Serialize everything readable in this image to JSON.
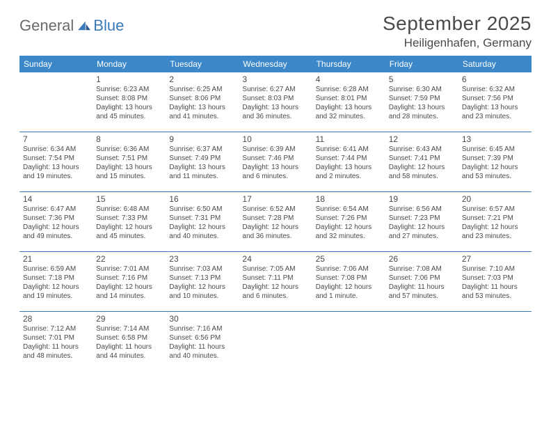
{
  "logo": {
    "word1": "General",
    "word2": "Blue"
  },
  "title": "September 2025",
  "location": "Heiligenhafen, Germany",
  "colors": {
    "header_bg": "#3b87c8",
    "header_text": "#ffffff",
    "rule": "#3b7ab8",
    "text": "#4a4a4a",
    "logo_gray": "#6a6a6a",
    "logo_blue": "#3b7ab8",
    "background": "#ffffff"
  },
  "typography": {
    "title_fontsize": 28,
    "location_fontsize": 17,
    "weekday_fontsize": 12,
    "daynum_fontsize": 12,
    "body_fontsize": 10
  },
  "layout": {
    "cols": 7,
    "start_col": 1
  },
  "weekdays": [
    "Sunday",
    "Monday",
    "Tuesday",
    "Wednesday",
    "Thursday",
    "Friday",
    "Saturday"
  ],
  "days": [
    {
      "n": "1",
      "sunrise": "6:23 AM",
      "sunset": "8:08 PM",
      "daylight": "13 hours and 45 minutes."
    },
    {
      "n": "2",
      "sunrise": "6:25 AM",
      "sunset": "8:06 PM",
      "daylight": "13 hours and 41 minutes."
    },
    {
      "n": "3",
      "sunrise": "6:27 AM",
      "sunset": "8:03 PM",
      "daylight": "13 hours and 36 minutes."
    },
    {
      "n": "4",
      "sunrise": "6:28 AM",
      "sunset": "8:01 PM",
      "daylight": "13 hours and 32 minutes."
    },
    {
      "n": "5",
      "sunrise": "6:30 AM",
      "sunset": "7:59 PM",
      "daylight": "13 hours and 28 minutes."
    },
    {
      "n": "6",
      "sunrise": "6:32 AM",
      "sunset": "7:56 PM",
      "daylight": "13 hours and 23 minutes."
    },
    {
      "n": "7",
      "sunrise": "6:34 AM",
      "sunset": "7:54 PM",
      "daylight": "13 hours and 19 minutes."
    },
    {
      "n": "8",
      "sunrise": "6:36 AM",
      "sunset": "7:51 PM",
      "daylight": "13 hours and 15 minutes."
    },
    {
      "n": "9",
      "sunrise": "6:37 AM",
      "sunset": "7:49 PM",
      "daylight": "13 hours and 11 minutes."
    },
    {
      "n": "10",
      "sunrise": "6:39 AM",
      "sunset": "7:46 PM",
      "daylight": "13 hours and 6 minutes."
    },
    {
      "n": "11",
      "sunrise": "6:41 AM",
      "sunset": "7:44 PM",
      "daylight": "13 hours and 2 minutes."
    },
    {
      "n": "12",
      "sunrise": "6:43 AM",
      "sunset": "7:41 PM",
      "daylight": "12 hours and 58 minutes."
    },
    {
      "n": "13",
      "sunrise": "6:45 AM",
      "sunset": "7:39 PM",
      "daylight": "12 hours and 53 minutes."
    },
    {
      "n": "14",
      "sunrise": "6:47 AM",
      "sunset": "7:36 PM",
      "daylight": "12 hours and 49 minutes."
    },
    {
      "n": "15",
      "sunrise": "6:48 AM",
      "sunset": "7:33 PM",
      "daylight": "12 hours and 45 minutes."
    },
    {
      "n": "16",
      "sunrise": "6:50 AM",
      "sunset": "7:31 PM",
      "daylight": "12 hours and 40 minutes."
    },
    {
      "n": "17",
      "sunrise": "6:52 AM",
      "sunset": "7:28 PM",
      "daylight": "12 hours and 36 minutes."
    },
    {
      "n": "18",
      "sunrise": "6:54 AM",
      "sunset": "7:26 PM",
      "daylight": "12 hours and 32 minutes."
    },
    {
      "n": "19",
      "sunrise": "6:56 AM",
      "sunset": "7:23 PM",
      "daylight": "12 hours and 27 minutes."
    },
    {
      "n": "20",
      "sunrise": "6:57 AM",
      "sunset": "7:21 PM",
      "daylight": "12 hours and 23 minutes."
    },
    {
      "n": "21",
      "sunrise": "6:59 AM",
      "sunset": "7:18 PM",
      "daylight": "12 hours and 19 minutes."
    },
    {
      "n": "22",
      "sunrise": "7:01 AM",
      "sunset": "7:16 PM",
      "daylight": "12 hours and 14 minutes."
    },
    {
      "n": "23",
      "sunrise": "7:03 AM",
      "sunset": "7:13 PM",
      "daylight": "12 hours and 10 minutes."
    },
    {
      "n": "24",
      "sunrise": "7:05 AM",
      "sunset": "7:11 PM",
      "daylight": "12 hours and 6 minutes."
    },
    {
      "n": "25",
      "sunrise": "7:06 AM",
      "sunset": "7:08 PM",
      "daylight": "12 hours and 1 minute."
    },
    {
      "n": "26",
      "sunrise": "7:08 AM",
      "sunset": "7:06 PM",
      "daylight": "11 hours and 57 minutes."
    },
    {
      "n": "27",
      "sunrise": "7:10 AM",
      "sunset": "7:03 PM",
      "daylight": "11 hours and 53 minutes."
    },
    {
      "n": "28",
      "sunrise": "7:12 AM",
      "sunset": "7:01 PM",
      "daylight": "11 hours and 48 minutes."
    },
    {
      "n": "29",
      "sunrise": "7:14 AM",
      "sunset": "6:58 PM",
      "daylight": "11 hours and 44 minutes."
    },
    {
      "n": "30",
      "sunrise": "7:16 AM",
      "sunset": "6:56 PM",
      "daylight": "11 hours and 40 minutes."
    }
  ],
  "labels": {
    "sunrise": "Sunrise:",
    "sunset": "Sunset:",
    "daylight": "Daylight:"
  }
}
